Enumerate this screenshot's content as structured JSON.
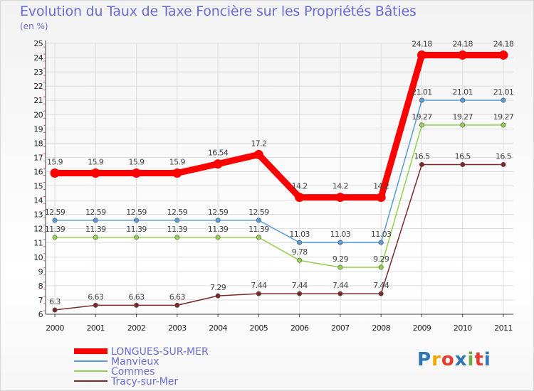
{
  "title": "Evolution du Taux de Taxe Foncière sur les Propriétés Bâties",
  "unit": "(en %)",
  "logo": "Proxiti",
  "chart_data": {
    "type": "line",
    "title": "Evolution du Taux de Taxe Foncière sur les Propriétés Bâties",
    "ylabel": "(en %)",
    "xlabel": "",
    "x": [
      "2000",
      "2001",
      "2002",
      "2003",
      "2004",
      "2005",
      "2006",
      "2007",
      "2008",
      "2009",
      "2010",
      "2011"
    ],
    "ylim": [
      6,
      25
    ],
    "yticks": [
      6,
      7,
      8,
      9,
      10,
      11,
      12,
      13,
      14,
      15,
      16,
      17,
      18,
      19,
      20,
      21,
      22,
      23,
      24,
      25
    ],
    "grid": true,
    "legend_position": "bottom-left",
    "series": [
      {
        "name": "LONGUES-SUR-MER",
        "color": "#ff0000",
        "values": [
          15.9,
          15.9,
          15.9,
          15.9,
          16.54,
          17.2,
          14.2,
          14.2,
          14.2,
          24.18,
          24.18,
          24.18
        ],
        "labels": [
          "15.9",
          "15.9",
          "15.9",
          "15.9",
          "16.54",
          "17.2",
          "14.2",
          "14.2",
          "14.2",
          "24.18",
          "24.18",
          "24.18"
        ]
      },
      {
        "name": "Manvieux",
        "color": "#5b9bd5",
        "values": [
          12.59,
          12.59,
          12.59,
          12.59,
          12.59,
          12.59,
          11.03,
          11.03,
          11.03,
          21.01,
          21.01,
          21.01
        ],
        "labels": [
          "12.59",
          "12.59",
          "12.59",
          "12.59",
          "12.59",
          "12.59",
          "11.03",
          "11.03",
          "11.03",
          "21.01",
          "21.01",
          "21.01"
        ]
      },
      {
        "name": "Commes",
        "color": "#92d050",
        "values": [
          11.39,
          11.39,
          11.39,
          11.39,
          11.39,
          11.39,
          9.78,
          9.29,
          9.29,
          19.27,
          19.27,
          19.27
        ],
        "labels": [
          "11.39",
          "11.39",
          "11.39",
          "11.39",
          "11.39",
          "11.39",
          "9.78",
          "9.29",
          "9.29",
          "19.27",
          "19.27",
          "19.27"
        ]
      },
      {
        "name": "Tracy-sur-Mer",
        "color": "#7b2a2a",
        "values": [
          6.3,
          6.63,
          6.63,
          6.63,
          7.29,
          7.44,
          7.44,
          7.44,
          7.44,
          16.5,
          16.5,
          16.5
        ],
        "labels": [
          "6.3",
          "6.63",
          "6.63",
          "6.63",
          "7.29",
          "7.44",
          "7.44",
          "7.44",
          "7.44",
          "16.5",
          "16.5",
          "16.5"
        ]
      }
    ]
  }
}
